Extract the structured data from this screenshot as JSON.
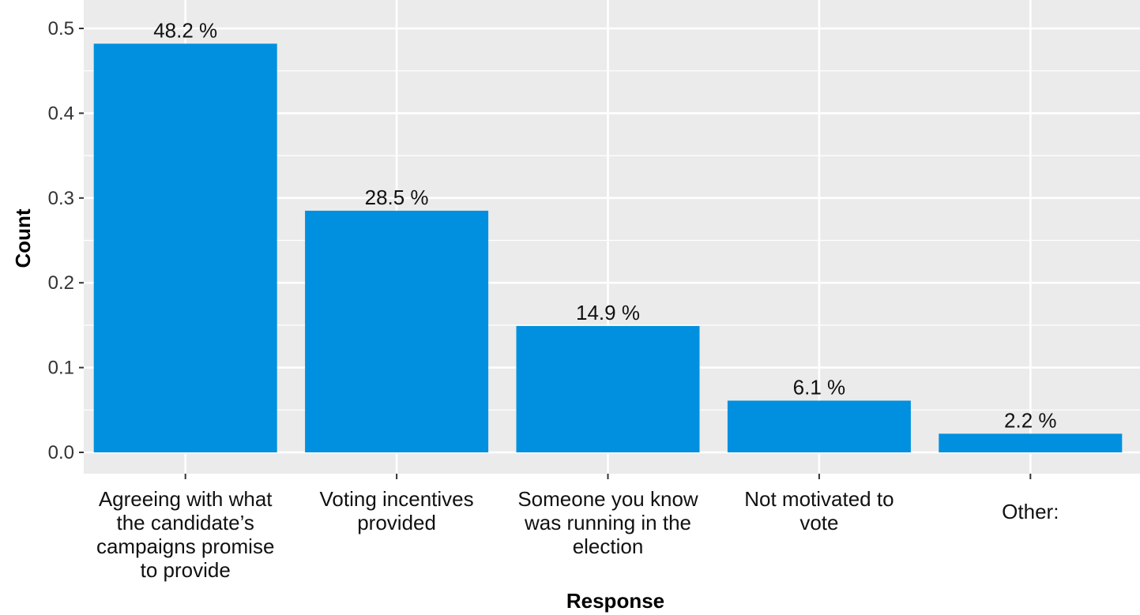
{
  "chart_data": {
    "type": "bar",
    "title": "",
    "xlabel": "Response",
    "ylabel": "Count",
    "ylim": [
      0,
      0.5
    ],
    "y_ticks": [
      "0.0",
      "0.1",
      "0.2",
      "0.3",
      "0.4",
      "0.5"
    ],
    "grid": true,
    "legend": "none",
    "categories": [
      "Agreeing with what the candidate’s campaigns promise to provide",
      "Voting incentives provided",
      "Someone you know was running in the election",
      "Not motivated to vote",
      "Other:"
    ],
    "category_label_lines": [
      [
        "Agreeing with what",
        "the candidate’s",
        "campaigns promise",
        "to provide"
      ],
      [
        "Voting incentives",
        "provided"
      ],
      [
        "Someone you know",
        "was running in the",
        "election"
      ],
      [
        "Not motivated to",
        "vote"
      ],
      [
        "Other:"
      ]
    ],
    "values": [
      0.482,
      0.285,
      0.149,
      0.061,
      0.022
    ],
    "data_labels": [
      "48.2 %",
      "28.5 %",
      "14.9 %",
      "6.1 %",
      "2.2 %"
    ],
    "colors": {
      "bar": "#0090DF",
      "panel": "#EBEBEB",
      "grid": "#FFFFFF"
    }
  }
}
